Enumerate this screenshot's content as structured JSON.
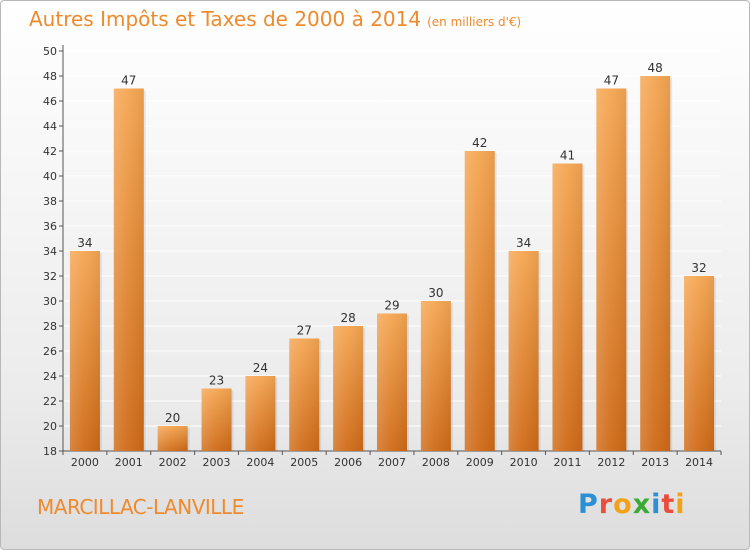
{
  "header": {
    "title": "Autres Impôts et Taxes de 2000 à 2014",
    "unit": "(en milliers d'€)"
  },
  "footer": {
    "commune": "MARCILLAC-LANVILLE",
    "logo_letters": [
      {
        "char": "P",
        "color": "#2b8fd6"
      },
      {
        "char": "r",
        "color": "#e94e3c"
      },
      {
        "char": "o",
        "color": "#f2a216"
      },
      {
        "char": "x",
        "color": "#3aa935"
      },
      {
        "char": "i",
        "color": "#2b8fd6"
      },
      {
        "char": "t",
        "color": "#e94e3c"
      },
      {
        "char": "i",
        "color": "#f2a216"
      }
    ]
  },
  "colors": {
    "bar_top": "#f5a652",
    "bar_bottom": "#cf6a17",
    "grid": "#ffffff",
    "title": "#ef8a2d"
  },
  "chart_data": {
    "type": "bar",
    "title": "Autres Impôts et Taxes de 2000 à 2014",
    "subtitle": "(en milliers d'€)",
    "xlabel": "",
    "ylabel": "",
    "categories": [
      "2000",
      "2001",
      "2002",
      "2003",
      "2004",
      "2005",
      "2006",
      "2007",
      "2008",
      "2009",
      "2010",
      "2011",
      "2012",
      "2013",
      "2014"
    ],
    "values": [
      34,
      47,
      20,
      23,
      24,
      27,
      28,
      29,
      30,
      42,
      34,
      41,
      47,
      48,
      32
    ],
    "ylim": [
      18,
      50
    ],
    "yticks": [
      18,
      20,
      22,
      24,
      26,
      28,
      30,
      32,
      34,
      36,
      38,
      40,
      42,
      44,
      46,
      48,
      50
    ],
    "grid": true,
    "legend": "none"
  }
}
